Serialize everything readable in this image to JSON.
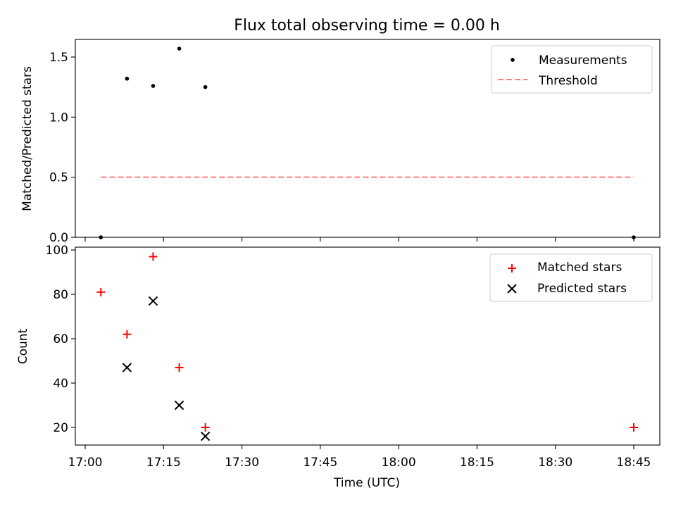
{
  "chart_data": [
    {
      "type": "scatter",
      "title": "Flux total observing time = 0.00 h",
      "xlabel": "",
      "ylabel": "Matched/Predicted stars",
      "ylim": [
        0,
        1.65
      ],
      "yticks": [
        "0.0",
        "0.5",
        "1.0",
        "1.5"
      ],
      "legend_position": "top-right",
      "series": [
        {
          "name": "Measurements",
          "kind": "scatter",
          "marker": "dot",
          "color": "#000000",
          "x": [
            "17:03",
            "17:08",
            "17:13",
            "17:18",
            "17:23",
            "18:45"
          ],
          "y": [
            0.0,
            1.32,
            1.26,
            1.57,
            1.25,
            0.0
          ]
        },
        {
          "name": "Threshold",
          "kind": "dashed-line",
          "color": "#ff7f7f",
          "x": [
            "17:03",
            "18:45"
          ],
          "y": [
            0.5,
            0.5
          ]
        }
      ]
    },
    {
      "type": "scatter",
      "title": "",
      "xlabel": "Time (UTC)",
      "ylabel": "Count",
      "ylim": [
        12,
        101
      ],
      "yticks": [
        "20",
        "40",
        "60",
        "80",
        "100"
      ],
      "xlim": [
        "17:00",
        "18:50"
      ],
      "xticks": [
        "17:00",
        "17:15",
        "17:30",
        "17:45",
        "18:00",
        "18:15",
        "18:30",
        "18:45"
      ],
      "legend_position": "top-right",
      "series": [
        {
          "name": "Matched stars",
          "kind": "scatter",
          "marker": "plus",
          "color": "#ff0000",
          "x": [
            "17:03",
            "17:08",
            "17:13",
            "17:18",
            "17:23",
            "18:45"
          ],
          "y": [
            81,
            62,
            97,
            47,
            20,
            20
          ]
        },
        {
          "name": "Predicted stars",
          "kind": "scatter",
          "marker": "cross",
          "color": "#000000",
          "x": [
            "17:08",
            "17:13",
            "17:18",
            "17:23"
          ],
          "y": [
            47,
            77,
            30,
            16
          ]
        }
      ]
    }
  ]
}
